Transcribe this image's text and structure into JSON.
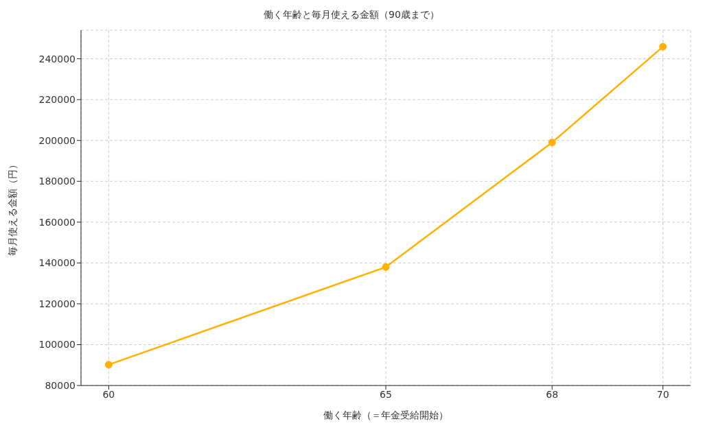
{
  "chart_data": {
    "type": "line",
    "title": "働く年齢と毎月使える金額（90歳まで）",
    "xlabel": "働く年齢（＝年金受給開始）",
    "ylabel": "毎月使える金額（円）",
    "x": [
      60,
      65,
      68,
      70
    ],
    "series": [
      {
        "color": "#ffb000",
        "values": [
          90200,
          138000,
          199000,
          245900
        ]
      }
    ],
    "xlim": [
      59.5,
      70.5
    ],
    "xticks": [
      60,
      65,
      68,
      70
    ],
    "ylim": [
      80000,
      254000
    ],
    "yticks": [
      80000,
      100000,
      120000,
      140000,
      160000,
      180000,
      200000,
      220000,
      240000
    ],
    "grid": true,
    "marker": "circle",
    "line_style": "solid"
  }
}
